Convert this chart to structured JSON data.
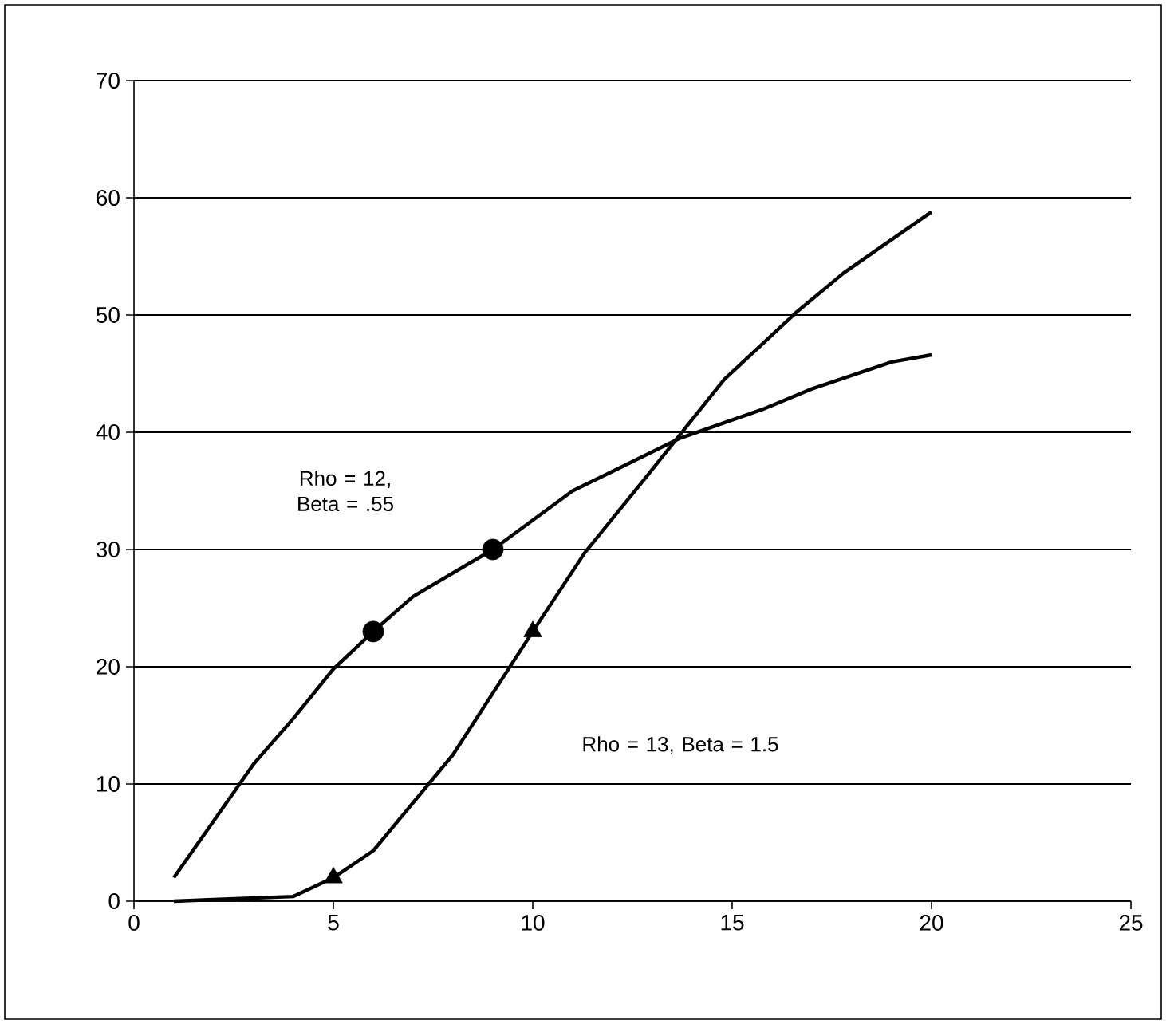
{
  "chart_data": {
    "type": "line",
    "xlim": [
      0,
      25
    ],
    "ylim": [
      0,
      70
    ],
    "xticks": [
      0,
      5,
      10,
      15,
      20,
      25
    ],
    "yticks": [
      0,
      10,
      20,
      30,
      40,
      50,
      60,
      70
    ],
    "grid": "y",
    "line_style": "solid",
    "annotations": [
      "Rho = 12, Beta = .55",
      "Rho = 13, Beta = 1.5"
    ],
    "series": [
      {
        "color": "#000000",
        "marker": "none",
        "x": [
          1,
          3,
          4,
          5,
          6,
          7,
          9,
          11,
          13.7,
          15.8,
          17,
          19,
          20
        ],
        "values": [
          2,
          11.7,
          15.6,
          19.8,
          23,
          26,
          30,
          35,
          39.5,
          42,
          43.7,
          46,
          46.6
        ]
      },
      {
        "color": "#000000",
        "type": "scatter",
        "marker": "circle",
        "x": [
          6,
          9
        ],
        "values": [
          23,
          30
        ]
      },
      {
        "color": "#000000",
        "marker": "none",
        "x": [
          1,
          4,
          5,
          6,
          8,
          10,
          11.3,
          12.8,
          14.8,
          16.6,
          17.8,
          20
        ],
        "values": [
          0,
          0.4,
          2,
          4.3,
          12.5,
          23,
          29.7,
          36,
          44.5,
          50.2,
          53.6,
          58.8
        ]
      },
      {
        "color": "#000000",
        "type": "scatter",
        "marker": "triangle",
        "x": [
          5,
          10
        ],
        "values": [
          2,
          23
        ]
      }
    ]
  }
}
